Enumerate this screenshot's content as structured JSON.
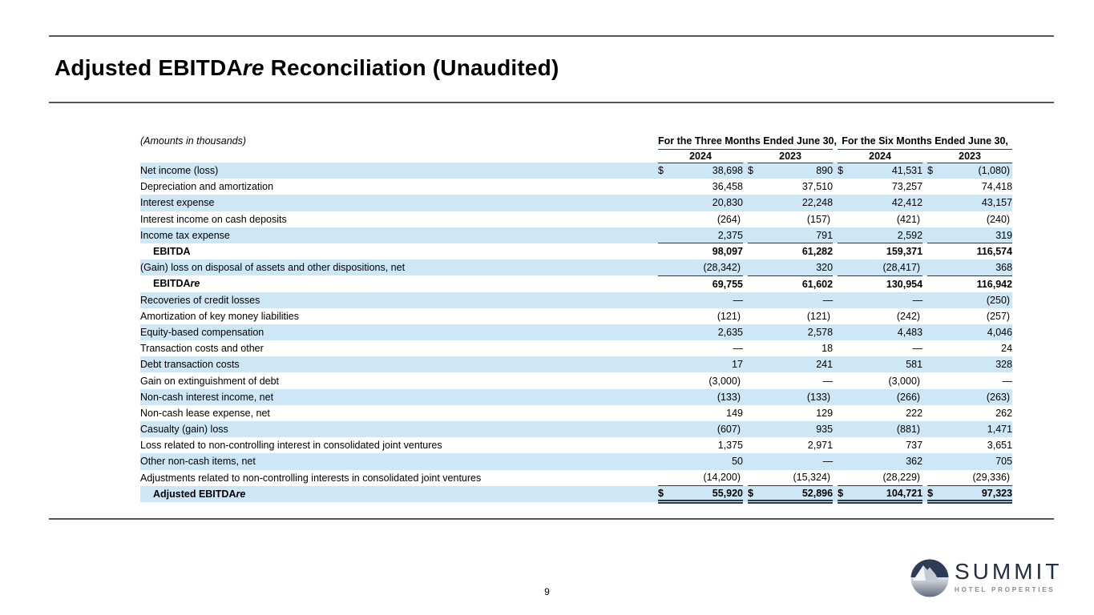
{
  "page": {
    "title_main": "Adjusted EBITDA",
    "title_italic": "re",
    "title_rest": " Reconciliation (Unaudited)",
    "page_number": "9"
  },
  "colors": {
    "row_stripe": "#cde7f6",
    "table_line": "#2f3642",
    "rule_color": "#55565a",
    "logo_navy": "#232e45",
    "logo_gray": "#848a96"
  },
  "logo": {
    "name": "SUMMIT",
    "subtitle": "HOTEL PROPERTIES",
    "icon": "mountain-in-circle-icon"
  },
  "table": {
    "units_note": "(Amounts in thousands)",
    "currency_symbol": "$",
    "col_groups": [
      {
        "label": "For the Three Months Ended June 30,",
        "years": [
          "2024",
          "2023"
        ]
      },
      {
        "label": "For the Six Months Ended June 30,",
        "years": [
          "2024",
          "2023"
        ]
      }
    ],
    "rows": [
      {
        "label": "Net income (loss)",
        "shade": true,
        "dollar": true,
        "values": [
          "38,698",
          "890",
          "41,531",
          "(1,080)"
        ]
      },
      {
        "label": "Depreciation and amortization",
        "values": [
          "36,458",
          "37,510",
          "73,257",
          "74,418"
        ]
      },
      {
        "label": "Interest expense",
        "shade": true,
        "values": [
          "20,830",
          "22,248",
          "42,412",
          "43,157"
        ]
      },
      {
        "label": "Interest income on cash deposits",
        "values": [
          "(264)",
          "(157)",
          "(421)",
          "(240)"
        ]
      },
      {
        "label": "Income tax expense",
        "shade": true,
        "values": [
          "2,375",
          "791",
          "2,592",
          "319"
        ]
      },
      {
        "label": "EBITDA",
        "bold": true,
        "indent": true,
        "line_above": true,
        "values": [
          "98,097",
          "61,282",
          "159,371",
          "116,574"
        ]
      },
      {
        "label": "(Gain) loss on disposal of assets and other dispositions, net",
        "shade": true,
        "values": [
          "(28,342)",
          "320",
          "(28,417)",
          "368"
        ]
      },
      {
        "label": "EBITDA",
        "label_italic": "re",
        "bold": true,
        "indent": true,
        "line_above": true,
        "values": [
          "69,755",
          "61,602",
          "130,954",
          "116,942"
        ]
      },
      {
        "label": "Recoveries of credit losses",
        "shade": true,
        "values": [
          "—",
          "—",
          "—",
          "(250)"
        ]
      },
      {
        "label": "Amortization of key money liabilities",
        "values": [
          "(121)",
          "(121)",
          "(242)",
          "(257)"
        ]
      },
      {
        "label": "Equity-based compensation",
        "shade": true,
        "values": [
          "2,635",
          "2,578",
          "4,483",
          "4,046"
        ]
      },
      {
        "label": "Transaction costs and other",
        "values": [
          "—",
          "18",
          "—",
          "24"
        ]
      },
      {
        "label": "Debt transaction costs",
        "shade": true,
        "values": [
          "17",
          "241",
          "581",
          "328"
        ]
      },
      {
        "label": "Gain on extinguishment of debt",
        "values": [
          "(3,000)",
          "—",
          "(3,000)",
          "—"
        ]
      },
      {
        "label": "Non-cash interest income, net",
        "shade": true,
        "values": [
          "(133)",
          "(133)",
          "(266)",
          "(263)"
        ]
      },
      {
        "label": "Non-cash lease expense, net",
        "values": [
          "149",
          "129",
          "222",
          "262"
        ]
      },
      {
        "label": "Casualty (gain) loss",
        "shade": true,
        "values": [
          "(607)",
          "935",
          "(881)",
          "1,471"
        ]
      },
      {
        "label": "Loss related to non-controlling interest in consolidated joint ventures",
        "values": [
          "1,375",
          "2,971",
          "737",
          "3,651"
        ]
      },
      {
        "label": "Other non-cash items, net",
        "shade": true,
        "values": [
          "50",
          "—",
          "362",
          "705"
        ]
      },
      {
        "label": "Adjustments related to non-controlling interests in consolidated joint ventures",
        "values": [
          "(14,200)",
          "(15,324)",
          "(28,229)",
          "(29,336)"
        ]
      },
      {
        "label": "Adjusted EBITDA",
        "label_italic": "re",
        "bold": true,
        "indent": true,
        "shade": true,
        "dollar": true,
        "line_above": true,
        "double_below": true,
        "values": [
          "55,920",
          "52,896",
          "104,721",
          "97,323"
        ]
      }
    ]
  }
}
